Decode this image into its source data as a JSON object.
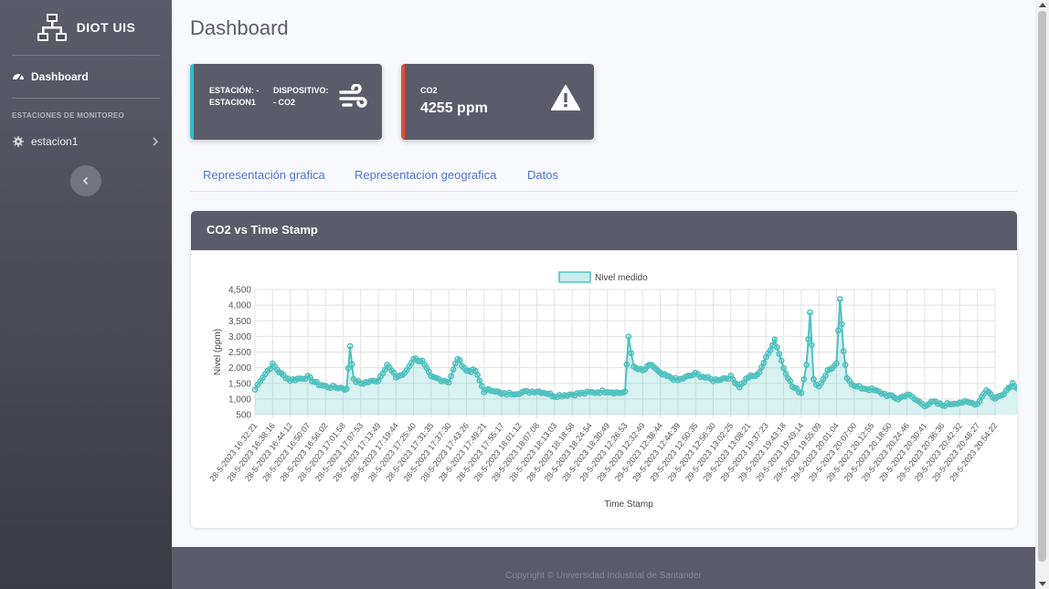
{
  "brand": {
    "name": "DIOT UIS",
    "icon": "sitemap-icon"
  },
  "sidebar": {
    "dashboard_label": "Dashboard",
    "section_heading": "ESTACIONES DE MONITOREO",
    "station_label": "estacion1"
  },
  "page_title": "Dashboard",
  "card_station": {
    "line1_a": "ESTACIÓN: -",
    "line2_a": "ESTACION1",
    "line1_b": "DISPOSITIVO:",
    "line2_b": "- CO2",
    "icon": "wind-icon",
    "accent": "#36b9cc"
  },
  "card_co2": {
    "label": "CO2",
    "value": "4255 ppm",
    "icon": "warning-icon",
    "accent": "#e74a3b"
  },
  "tabs": [
    "Representación grafica",
    "Representacion geografica",
    "Datos"
  ],
  "chart_title": "CO2 vs Time Stamp",
  "chart_data": {
    "type": "line",
    "series": [
      {
        "name": "Nivel medido",
        "color": "#4fc1bf"
      }
    ],
    "xlabel": "Time Stamp",
    "ylabel": "Nivel (ppm)",
    "ylim": [
      500,
      4500
    ],
    "yticks": [
      500,
      1000,
      1500,
      2000,
      2500,
      3000,
      3500,
      4000,
      4500
    ],
    "ytick_labels": [
      "500",
      "1,000",
      "1,500",
      "2,000",
      "2,500",
      "3,000",
      "3,500",
      "4,000",
      "4,500"
    ],
    "xtick_labels": [
      "28-5-2023 16:32:21",
      "28-5-2023 16:38:16",
      "28-5-2023 16:44:12",
      "28-5-2023 16:50:07",
      "28-5-2023 16:56:02",
      "28-5-2023 17:01:58",
      "28-5-2023 17:07:53",
      "28-5-2023 17:13:49",
      "28-5-2023 17:19:44",
      "28-5-2023 17:25:40",
      "28-5-2023 17:31:35",
      "28-5-2023 17:37:30",
      "28-5-2023 17:43:26",
      "28-5-2023 17:49:21",
      "28-5-2023 17:55:17",
      "28-5-2023 18:01:12",
      "28-5-2023 18:07:08",
      "28-5-2023 18:13:03",
      "28-5-2023 18:18:58",
      "28-5-2023 18:24:54",
      "28-5-2023 18:30:49",
      "29-5-2023 12:26:53",
      "29-5-2023 12:32:49",
      "29-5-2023 12:38:44",
      "29-5-2023 12:44:39",
      "29-5-2023 12:50:35",
      "29-5-2023 12:56:30",
      "29-5-2023 13:02:25",
      "29-5-2023 13:08:21",
      "29-5-2023 19:37:23",
      "29-5-2023 19:43:18",
      "29-5-2023 19:49:14",
      "29-5-2023 19:55:09",
      "29-5-2023 20:01:04",
      "29-5-2023 20:07:00",
      "29-5-2023 20:12:55",
      "29-5-2023 20:18:50",
      "29-5-2023 20:24:46",
      "29-5-2023 20:30:41",
      "29-5-2023 20:36:36",
      "29-5-2023 20:42:32",
      "29-5-2023 20:48:27",
      "29-5-2023 20:54:22"
    ],
    "profile": [
      [
        0,
        1300
      ],
      [
        0.3,
        1600
      ],
      [
        1,
        2100
      ],
      [
        1.5,
        1800
      ],
      [
        2,
        1600
      ],
      [
        3,
        1700
      ],
      [
        3.5,
        1500
      ],
      [
        4,
        1400
      ],
      [
        5,
        1350
      ],
      [
        5.2,
        1300
      ],
      [
        5.4,
        2700
      ],
      [
        5.6,
        1600
      ],
      [
        6,
        1500
      ],
      [
        7,
        1600
      ],
      [
        7.5,
        2100
      ],
      [
        8,
        1700
      ],
      [
        8.5,
        1800
      ],
      [
        9,
        2300
      ],
      [
        9.5,
        2200
      ],
      [
        10,
        1700
      ],
      [
        11,
        1550
      ],
      [
        11.5,
        2300
      ],
      [
        12,
        1900
      ],
      [
        12.5,
        1900
      ],
      [
        13,
        1250
      ],
      [
        13.5,
        1300
      ],
      [
        14,
        1150
      ],
      [
        15,
        1200
      ],
      [
        16,
        1250
      ],
      [
        16.5,
        1200
      ],
      [
        17,
        1100
      ],
      [
        18,
        1150
      ],
      [
        19,
        1200
      ],
      [
        20,
        1250
      ],
      [
        20.5,
        1200
      ],
      [
        21,
        1200
      ],
      [
        21.2,
        3000
      ],
      [
        21.5,
        2000
      ],
      [
        22,
        1900
      ],
      [
        22.5,
        2100
      ],
      [
        23,
        1800
      ],
      [
        23.5,
        1700
      ],
      [
        24,
        1600
      ],
      [
        25,
        1800
      ],
      [
        26,
        1600
      ],
      [
        27,
        1700
      ],
      [
        27.5,
        1400
      ],
      [
        28,
        1700
      ],
      [
        28.5,
        1750
      ],
      [
        29,
        2300
      ],
      [
        29.5,
        2900
      ],
      [
        30,
        2000
      ],
      [
        30.5,
        1400
      ],
      [
        31,
        1200
      ],
      [
        31.3,
        2100
      ],
      [
        31.5,
        3800
      ],
      [
        31.7,
        1600
      ],
      [
        32,
        1400
      ],
      [
        32.5,
        1900
      ],
      [
        33,
        2100
      ],
      [
        33.2,
        4200
      ],
      [
        33.4,
        2500
      ],
      [
        33.6,
        1700
      ],
      [
        34,
        1400
      ],
      [
        35,
        1300
      ],
      [
        36,
        1100
      ],
      [
        36.5,
        1000
      ],
      [
        37,
        1150
      ],
      [
        38,
        800
      ],
      [
        38.5,
        900
      ],
      [
        39,
        800
      ],
      [
        40,
        900
      ],
      [
        41,
        850
      ],
      [
        41.5,
        1300
      ],
      [
        42,
        1000
      ],
      [
        42.5,
        1200
      ],
      [
        43,
        1500
      ],
      [
        43.4,
        1300
      ]
    ]
  },
  "footer_text": "Copyright © Universidad Industrial de Santander"
}
